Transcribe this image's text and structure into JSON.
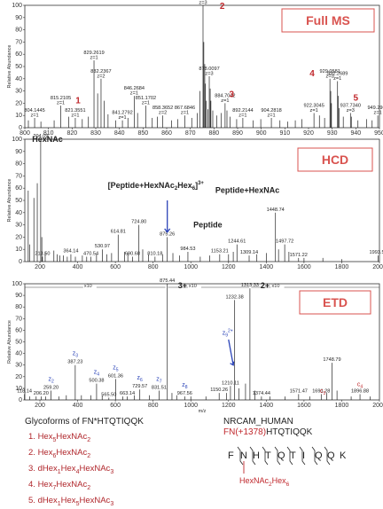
{
  "chart_data": [
    {
      "type": "bar",
      "panel": "full_ms",
      "badge": "Full MS",
      "ylabel": "Relative Abundance",
      "xlabel": "",
      "xlim": [
        800,
        950
      ],
      "ylim": [
        0,
        100
      ],
      "xticks": [
        800,
        810,
        820,
        830,
        840,
        850,
        860,
        870,
        880,
        890,
        900,
        910,
        920,
        930,
        940,
        950
      ],
      "yticks": [
        0,
        10,
        20,
        30,
        40,
        50,
        60,
        70,
        80,
        90,
        100
      ],
      "labeled_peaks": [
        {
          "mz": 804.1445,
          "rel": 8,
          "mz_text": "804.1445",
          "charge": "z=1"
        },
        {
          "mz": 815.2105,
          "rel": 18,
          "mz_text": "815.2105",
          "charge": "z=1"
        },
        {
          "mz": 821.3551,
          "rel": 8,
          "mz_text": "821.3551",
          "charge": "z=1"
        },
        {
          "mz": 829.2619,
          "rel": 55,
          "mz_text": "829.2619",
          "charge": "z=1"
        },
        {
          "mz": 832.2367,
          "rel": 40,
          "mz_text": "832.2367",
          "charge": "z=2"
        },
        {
          "mz": 841.2792,
          "rel": 6,
          "mz_text": "841.2792",
          "charge": "z=1"
        },
        {
          "mz": 846.2684,
          "rel": 26,
          "mz_text": "846.2684",
          "charge": "z=1"
        },
        {
          "mz": 851.1702,
          "rel": 18,
          "mz_text": "851.1702",
          "charge": "z=1"
        },
        {
          "mz": 858.3652,
          "rel": 10,
          "mz_text": "858.3652",
          "charge": "z=2"
        },
        {
          "mz": 867.6846,
          "rel": 10,
          "mz_text": "867.6846",
          "charge": "z=1"
        },
        {
          "mz": 875.3731,
          "rel": 100,
          "mz_text": "875.3731",
          "charge": "z=3"
        },
        {
          "mz": 878.0097,
          "rel": 42,
          "mz_text": "878.0097",
          "charge": "z=3"
        },
        {
          "mz": 884.7042,
          "rel": 20,
          "mz_text": "884.7042",
          "charge": "z=1"
        },
        {
          "mz": 892.2144,
          "rel": 8,
          "mz_text": "892.2144",
          "charge": "z=1"
        },
        {
          "mz": 904.2818,
          "rel": 8,
          "mz_text": "904.2818",
          "charge": "z=1"
        },
        {
          "mz": 922.3045,
          "rel": 12,
          "mz_text": "922.3045",
          "charge": "z=1"
        },
        {
          "mz": 929.0581,
          "rel": 40,
          "mz_text": "929.0581",
          "charge": "z=3"
        },
        {
          "mz": 932.2689,
          "rel": 38,
          "mz_text": "932.2689",
          "charge": "z=1"
        },
        {
          "mz": 937.734,
          "rel": 12,
          "mz_text": "937.7340",
          "charge": "z=3"
        },
        {
          "mz": 949.2962,
          "rel": 10,
          "mz_text": "949.2962",
          "charge": "z=1"
        }
      ],
      "unlabeled_peaks": [
        {
          "mz": 801.5,
          "rel": 6
        },
        {
          "mz": 806.8,
          "rel": 5
        },
        {
          "mz": 812.4,
          "rel": 6
        },
        {
          "mz": 818.6,
          "rel": 9
        },
        {
          "mz": 824.3,
          "rel": 7
        },
        {
          "mz": 826.9,
          "rel": 9
        },
        {
          "mz": 830.8,
          "rel": 28
        },
        {
          "mz": 833.6,
          "rel": 22
        },
        {
          "mz": 835.2,
          "rel": 11
        },
        {
          "mz": 838.4,
          "rel": 6
        },
        {
          "mz": 843.6,
          "rel": 8
        },
        {
          "mz": 847.7,
          "rel": 12
        },
        {
          "mz": 853.9,
          "rel": 8
        },
        {
          "mz": 856.1,
          "rel": 9
        },
        {
          "mz": 862.1,
          "rel": 6
        },
        {
          "mz": 864.7,
          "rel": 7
        },
        {
          "mz": 870.6,
          "rel": 8
        },
        {
          "mz": 872.9,
          "rel": 12
        },
        {
          "mz": 874.0,
          "rel": 30
        },
        {
          "mz": 875.7,
          "rel": 70
        },
        {
          "mz": 876.1,
          "rel": 52
        },
        {
          "mz": 876.4,
          "rel": 36
        },
        {
          "mz": 876.8,
          "rel": 22
        },
        {
          "mz": 877.4,
          "rel": 15
        },
        {
          "mz": 878.4,
          "rel": 32
        },
        {
          "mz": 878.7,
          "rel": 22
        },
        {
          "mz": 879.5,
          "rel": 14
        },
        {
          "mz": 881.2,
          "rel": 10
        },
        {
          "mz": 883.0,
          "rel": 12
        },
        {
          "mz": 885.5,
          "rel": 14
        },
        {
          "mz": 886.8,
          "rel": 9
        },
        {
          "mz": 889.6,
          "rel": 7
        },
        {
          "mz": 896.5,
          "rel": 6
        },
        {
          "mz": 899.8,
          "rel": 7
        },
        {
          "mz": 907.9,
          "rel": 6
        },
        {
          "mz": 911.2,
          "rel": 5
        },
        {
          "mz": 914.4,
          "rel": 6
        },
        {
          "mz": 917.2,
          "rel": 7
        },
        {
          "mz": 924.6,
          "rel": 10
        },
        {
          "mz": 926.8,
          "rel": 8
        },
        {
          "mz": 929.4,
          "rel": 30
        },
        {
          "mz": 929.7,
          "rel": 20
        },
        {
          "mz": 932.6,
          "rel": 26
        },
        {
          "mz": 933.0,
          "rel": 16
        },
        {
          "mz": 934.7,
          "rel": 9
        },
        {
          "mz": 938.1,
          "rel": 9
        },
        {
          "mz": 940.9,
          "rel": 6
        },
        {
          "mz": 944.5,
          "rel": 7
        },
        {
          "mz": 946.9,
          "rel": 6
        }
      ],
      "annotations": [
        {
          "text": "1",
          "mz": 822.5,
          "rel": 20
        },
        {
          "text": "2",
          "mz": 883.5,
          "rel": 97
        },
        {
          "text": "3",
          "mz": 887.5,
          "rel": 25
        },
        {
          "text": "4",
          "mz": 921.5,
          "rel": 42
        },
        {
          "text": "5",
          "mz": 940.0,
          "rel": 22
        }
      ]
    },
    {
      "type": "bar",
      "panel": "hcd",
      "badge": "HCD",
      "ylabel": "Relative Abundance",
      "xlabel": "",
      "xlim": [
        120,
        2000
      ],
      "ylim": [
        0,
        100
      ],
      "xticks": [
        200,
        400,
        600,
        800,
        1000,
        1200,
        1400,
        1600,
        1800,
        2000
      ],
      "yticks": [
        0,
        10,
        20,
        30,
        40,
        50,
        60,
        70,
        80,
        90,
        100
      ],
      "labeled_peaks": [
        {
          "mz": 204.09,
          "rel": 100,
          "mz_text": "204.09"
        },
        {
          "mz": 213.5,
          "rel": 4,
          "mz_text": "213.50"
        },
        {
          "mz": 364.14,
          "rel": 6,
          "mz_text": "364.14"
        },
        {
          "mz": 470.54,
          "rel": 4,
          "mz_text": "470.54"
        },
        {
          "mz": 530.97,
          "rel": 10,
          "mz_text": "530.97"
        },
        {
          "mz": 614.81,
          "rel": 22,
          "mz_text": "614.81"
        },
        {
          "mz": 690.68,
          "rel": 4,
          "mz_text": "690.68"
        },
        {
          "mz": 724.8,
          "rel": 30,
          "mz_text": "724.80"
        },
        {
          "mz": 810.18,
          "rel": 4,
          "mz_text": "810.18"
        },
        {
          "mz": 875.26,
          "rel": 20,
          "mz_text": "875.26"
        },
        {
          "mz": 984.53,
          "rel": 8,
          "mz_text": "984.53"
        },
        {
          "mz": 1153.21,
          "rel": 6,
          "mz_text": "1153.21"
        },
        {
          "mz": 1244.61,
          "rel": 14,
          "mz_text": "1244.61"
        },
        {
          "mz": 1309.14,
          "rel": 5,
          "mz_text": "1309.14"
        },
        {
          "mz": 1448.74,
          "rel": 40,
          "mz_text": "1448.74"
        },
        {
          "mz": 1497.72,
          "rel": 14,
          "mz_text": "1497.72"
        },
        {
          "mz": 1571.22,
          "rel": 3,
          "mz_text": "1571.22"
        },
        {
          "mz": 1993.5,
          "rel": 5,
          "mz_text": "1993.50"
        }
      ],
      "unlabeled_peaks": [
        {
          "mz": 138,
          "rel": 58
        },
        {
          "mz": 145,
          "rel": 14
        },
        {
          "mz": 168,
          "rel": 52
        },
        {
          "mz": 186,
          "rel": 64
        },
        {
          "mz": 210,
          "rel": 20
        },
        {
          "mz": 228,
          "rel": 8
        },
        {
          "mz": 274,
          "rel": 9
        },
        {
          "mz": 292,
          "rel": 6
        },
        {
          "mz": 305,
          "rel": 5
        },
        {
          "mz": 325,
          "rel": 5
        },
        {
          "mz": 345,
          "rel": 4
        },
        {
          "mz": 388,
          "rel": 4
        },
        {
          "mz": 425,
          "rel": 5
        },
        {
          "mz": 448,
          "rel": 4
        },
        {
          "mz": 500,
          "rel": 6
        },
        {
          "mz": 555,
          "rel": 6
        },
        {
          "mz": 580,
          "rel": 7
        },
        {
          "mz": 648,
          "rel": 8
        },
        {
          "mz": 666,
          "rel": 7
        },
        {
          "mz": 745,
          "rel": 10
        },
        {
          "mz": 775,
          "rel": 6
        },
        {
          "mz": 850,
          "rel": 6
        },
        {
          "mz": 905,
          "rel": 7
        },
        {
          "mz": 940,
          "rel": 5
        },
        {
          "mz": 1050,
          "rel": 4
        },
        {
          "mz": 1100,
          "rel": 5
        },
        {
          "mz": 1200,
          "rel": 6
        },
        {
          "mz": 1225,
          "rel": 8
        },
        {
          "mz": 1350,
          "rel": 6
        },
        {
          "mz": 1400,
          "rel": 7
        },
        {
          "mz": 1465,
          "rel": 10
        },
        {
          "mz": 1520,
          "rel": 8
        },
        {
          "mz": 1600,
          "rel": 3
        },
        {
          "mz": 1700,
          "rel": 3
        },
        {
          "mz": 1800,
          "rel": 2
        }
      ],
      "annotations": [
        {
          "text": "HexNAc",
          "mz": 240,
          "rel": 98,
          "kind": "black"
        },
        {
          "text": "Peptide+HexNAc",
          "mz": 1300,
          "rel": 56,
          "kind": "black"
        },
        {
          "text": "Peptide",
          "mz": 1090,
          "rel": 28,
          "kind": "black"
        }
      ],
      "bracket_label": {
        "pre": "[Peptide+HexNAc",
        "s1": "2",
        "mid": "Hex",
        "s2": "6",
        "post": "]",
        "sup": "3+"
      },
      "arrow_peak": 875.26
    },
    {
      "type": "bar",
      "panel": "etd",
      "badge": "ETD",
      "ylabel": "Relative Abundance",
      "xlabel": "m/z",
      "xlim": [
        120,
        2000
      ],
      "ylim": [
        0,
        100
      ],
      "xticks": [
        200,
        400,
        600,
        800,
        1000,
        1200,
        1400,
        1600,
        1800,
        2000
      ],
      "yticks": [
        0,
        10,
        20,
        30,
        40,
        50,
        60,
        70,
        80,
        90,
        100
      ],
      "zoom_labels": [
        {
          "text": "x10",
          "mz": 500
        },
        {
          "text": "x10",
          "mz": 1055
        },
        {
          "text": "x10",
          "mz": 1495
        }
      ],
      "labeled_peaks": [
        {
          "mz": 118.14,
          "rel": 5,
          "mz_text": "118.14"
        },
        {
          "mz": 206.2,
          "rel": 3,
          "mz_text": "206.20"
        },
        {
          "mz": 259.2,
          "rel": 8,
          "mz_text": "259.20"
        },
        {
          "mz": 387.23,
          "rel": 30,
          "mz_text": "387.23"
        },
        {
          "mz": 500.38,
          "rel": 14,
          "mz_text": "500.38"
        },
        {
          "mz": 565.5,
          "rel": 2,
          "mz_text": "565.50"
        },
        {
          "mz": 601.36,
          "rel": 18,
          "mz_text": "601.36"
        },
        {
          "mz": 663.14,
          "rel": 3,
          "mz_text": "663.14"
        },
        {
          "mz": 729.57,
          "rel": 9,
          "mz_text": "729.57"
        },
        {
          "mz": 831.51,
          "rel": 8,
          "mz_text": "831.51"
        },
        {
          "mz": 875.44,
          "rel": 100,
          "mz_text": "875.44"
        },
        {
          "mz": 967.56,
          "rel": 3,
          "mz_text": "967.56"
        },
        {
          "mz": 1150.26,
          "rel": 6,
          "mz_text": "1150.26"
        },
        {
          "mz": 1210.11,
          "rel": 12,
          "mz_text": "1210.11"
        },
        {
          "mz": 1232.38,
          "rel": 86,
          "mz_text": "1232.38"
        },
        {
          "mz": 1313.33,
          "rel": 96,
          "mz_text": "1313.33"
        },
        {
          "mz": 1374.44,
          "rel": 3,
          "mz_text": "1374.44"
        },
        {
          "mz": 1571.47,
          "rel": 5,
          "mz_text": "1571.47"
        },
        {
          "mz": 1691.28,
          "rel": 5,
          "mz_text": "1691.28"
        },
        {
          "mz": 1748.79,
          "rel": 32,
          "mz_text": "1748.79"
        },
        {
          "mz": 1896.88,
          "rel": 5,
          "mz_text": "1896.88"
        }
      ],
      "unlabeled_peaks": [
        {
          "mz": 145,
          "rel": 3
        },
        {
          "mz": 180,
          "rel": 3
        },
        {
          "mz": 230,
          "rel": 3
        },
        {
          "mz": 300,
          "rel": 3
        },
        {
          "mz": 340,
          "rel": 4
        },
        {
          "mz": 420,
          "rel": 4
        },
        {
          "mz": 470,
          "rel": 4
        },
        {
          "mz": 530,
          "rel": 4
        },
        {
          "mz": 640,
          "rel": 3
        },
        {
          "mz": 700,
          "rel": 4
        },
        {
          "mz": 780,
          "rel": 4
        },
        {
          "mz": 900,
          "rel": 6
        },
        {
          "mz": 925,
          "rel": 4
        },
        {
          "mz": 1000,
          "rel": 3
        },
        {
          "mz": 1080,
          "rel": 3
        },
        {
          "mz": 1190,
          "rel": 6
        },
        {
          "mz": 1255,
          "rel": 10
        },
        {
          "mz": 1290,
          "rel": 14
        },
        {
          "mz": 1340,
          "rel": 8
        },
        {
          "mz": 1420,
          "rel": 3
        },
        {
          "mz": 1500,
          "rel": 3
        },
        {
          "mz": 1630,
          "rel": 3
        },
        {
          "mz": 1720,
          "rel": 6
        },
        {
          "mz": 1775,
          "rel": 8
        },
        {
          "mz": 1850,
          "rel": 3
        },
        {
          "mz": 1950,
          "rel": 3
        }
      ],
      "ion_labels": [
        {
          "letter": "z",
          "sub": "2",
          "sup": "",
          "mz": 259.2,
          "color": "#2a43b8"
        },
        {
          "letter": "z",
          "sub": "3",
          "sup": "",
          "mz": 387.23,
          "color": "#2a43b8"
        },
        {
          "letter": "z",
          "sub": "4",
          "sup": "",
          "mz": 500.38,
          "color": "#2a43b8"
        },
        {
          "letter": "z",
          "sub": "5",
          "sup": "",
          "mz": 601.36,
          "color": "#2a43b8"
        },
        {
          "letter": "z",
          "sub": "6",
          "sup": "",
          "mz": 729.57,
          "color": "#2a43b8"
        },
        {
          "letter": "z",
          "sub": "7",
          "sup": "",
          "mz": 831.51,
          "color": "#2a43b8"
        },
        {
          "letter": "z",
          "sub": "8",
          "sup": "",
          "mz": 967.56,
          "color": "#2a43b8"
        },
        {
          "letter": "z",
          "sub": "9",
          "sup": "2+",
          "mz": 1150,
          "color": "#2a43b8"
        },
        {
          "letter": "c",
          "sub": "3",
          "sup": "",
          "mz": 1748.79,
          "color": "#c0282d"
        },
        {
          "letter": "c",
          "sub": "4",
          "sup": "",
          "mz": 1896.88,
          "color": "#c0282d"
        }
      ],
      "charge_labels": [
        {
          "text": "3+",
          "mz": 875.44
        },
        {
          "text": "2+",
          "mz": 1313.33
        }
      ]
    }
  ],
  "legend": {
    "title": "Glycoforms of FN*HTQTIQQK",
    "items": [
      {
        "num": "1.",
        "parts": [
          [
            "Hex",
            "5"
          ],
          [
            "HexNAc",
            "2"
          ]
        ]
      },
      {
        "num": "2.",
        "parts": [
          [
            "Hex",
            "6"
          ],
          [
            "HexNAc",
            "2"
          ]
        ]
      },
      {
        "num": "3.",
        "parts": [
          [
            "dHex",
            "1"
          ],
          [
            "Hex",
            "4"
          ],
          [
            "HexNAc",
            "3"
          ]
        ]
      },
      {
        "num": "4.",
        "parts": [
          [
            "Hex",
            "7"
          ],
          [
            "HexNAc",
            "2"
          ]
        ]
      },
      {
        "num": "5.",
        "parts": [
          [
            "dHex",
            "1"
          ],
          [
            "Hex",
            "5"
          ],
          [
            "HexNAc",
            "3"
          ]
        ]
      }
    ]
  },
  "protein": {
    "name": "NRCAM_HUMAN",
    "seq_red": "FN(+1378)",
    "seq_rest": "HTQTIQQK",
    "residues": [
      "F",
      "N",
      "H",
      "T",
      "Q",
      "T",
      "I",
      "Q",
      "Q",
      "K"
    ],
    "glycan_parts": [
      [
        "HexNAc",
        "2"
      ],
      [
        "Hex",
        "6"
      ]
    ]
  },
  "colors": {
    "badge": "#d9534f",
    "annotation_red": "#c0282d",
    "annotation_blue": "#2a43b8",
    "peak": "#222222"
  }
}
